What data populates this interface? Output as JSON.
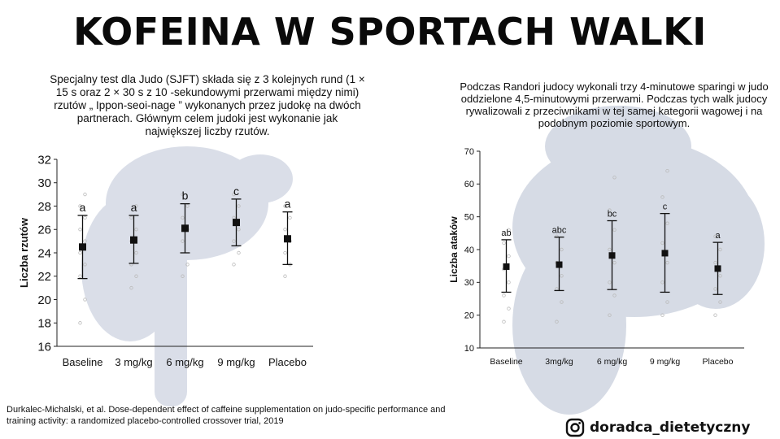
{
  "title": "KOFEINA W SPORTACH WALKI",
  "left_description": "Specjalny test dla Judo (SJFT) składa się z 3 kolejnych rund (1 × 15 s oraz 2 × 30 s z 10 -sekundowymi przerwami między nimi) rzutów „ Ippon-seoi-nage ” wykonanych przez judokę na dwóch partnerach. Głównym celem judoki jest wykonanie jak największej liczby rzutów.",
  "right_description": "Podczas Randori judocy wykonali trzy 4-minutowe sparingi w judo oddzielone 4,5-minutowymi przerwami. Podczas tych walk judocy rywalizowali z przeciwnikami w tej samej kategorii wagowej i na podobnym poziomie sportowym.",
  "citation": "Durkalec-Michalski, et al. Dose-dependent effect of caffeine supplementation on judo-specific performance and training activity: a randomized placebo-controlled crossover trial, 2019",
  "brand": {
    "handle": "doradca_dietetyczny",
    "icon": "instagram-icon"
  },
  "colors": {
    "marker": "#111111",
    "individual": "#bbbbbb"
  },
  "chart_data": [
    {
      "type": "scatter",
      "ylabel": "Liczba rzutów",
      "xlabel": "",
      "categories": [
        "Baseline",
        "3 mg/kg",
        "6 mg/kg",
        "9 mg/kg",
        "Placebo"
      ],
      "ylim": [
        16,
        32
      ],
      "yticks": [
        16,
        18,
        20,
        22,
        24,
        26,
        28,
        30,
        32
      ],
      "means": [
        24.5,
        25.1,
        26.1,
        26.6,
        25.2
      ],
      "error_low": [
        21.8,
        23.1,
        24.0,
        24.6,
        23.0
      ],
      "error_high": [
        27.2,
        27.2,
        28.2,
        28.6,
        27.5
      ],
      "letters": [
        "a",
        "a",
        "b",
        "c",
        "a"
      ],
      "individual_points": [
        [
          18,
          20,
          22,
          23,
          24,
          25,
          26,
          27,
          28,
          29
        ],
        [
          21,
          22,
          23,
          24,
          25,
          26,
          27,
          28
        ],
        [
          22,
          23,
          25,
          26,
          27,
          28,
          29
        ],
        [
          23,
          24,
          25,
          26,
          27,
          28,
          29
        ],
        [
          22,
          23,
          24,
          25,
          26,
          27,
          28
        ]
      ]
    },
    {
      "type": "scatter",
      "ylabel": "Liczba ataków",
      "xlabel": "",
      "categories": [
        "Baseline",
        "3mg/kg",
        "6 mg/kg",
        "9 mg/kg",
        "Placebo"
      ],
      "ylim": [
        10,
        70
      ],
      "yticks": [
        10,
        20,
        30,
        40,
        50,
        60,
        70
      ],
      "means": [
        34.8,
        35.4,
        38.2,
        38.9,
        34.2
      ],
      "error_low": [
        27.0,
        27.5,
        27.8,
        27.0,
        26.3
      ],
      "error_high": [
        43.0,
        43.8,
        48.8,
        51.0,
        42.2
      ],
      "letters": [
        "ab",
        "abc",
        "bc",
        "c",
        "a"
      ],
      "individual_points": [
        [
          18,
          22,
          26,
          30,
          34,
          38,
          42,
          46
        ],
        [
          18,
          24,
          28,
          32,
          36,
          40,
          44
        ],
        [
          20,
          26,
          30,
          36,
          40,
          46,
          52,
          62
        ],
        [
          20,
          24,
          30,
          36,
          42,
          48,
          56,
          64
        ],
        [
          20,
          24,
          28,
          32,
          36,
          40,
          44
        ]
      ]
    }
  ]
}
